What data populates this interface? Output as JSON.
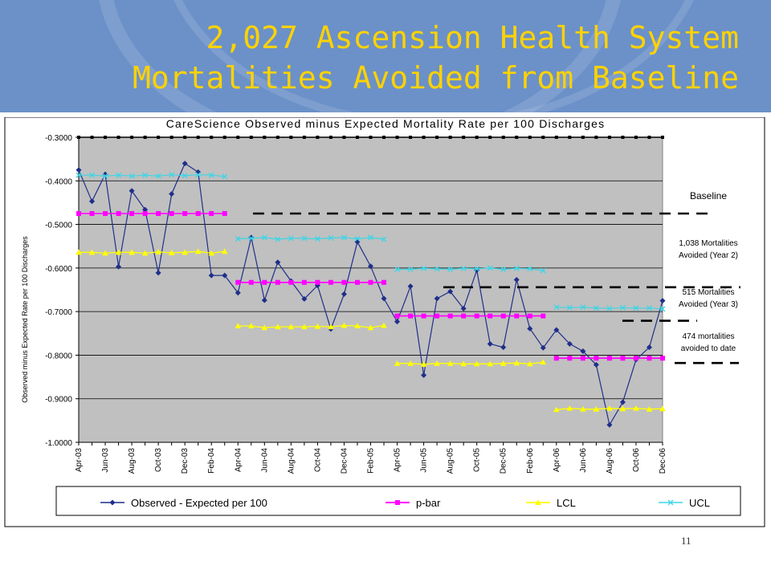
{
  "slide": {
    "title": "2,027 Ascension Health System Mortalities Avoided from Baseline",
    "page_number": "11"
  },
  "colors": {
    "header_bg": "#6b91c8",
    "title": "#ffd200",
    "plot_bg": "#c0c0c0",
    "observed": "#1f2f8a",
    "pbar": "#ff00ff",
    "lcl": "#ffff00",
    "ucl": "#3cd6e6"
  },
  "chart_data": {
    "type": "line",
    "title": "CareScience Observed minus Expected Mortality Rate per 100 Discharges",
    "ylabel": "Observed minus Expected Rate per 100 Discharges",
    "xlabel": "",
    "ylim": [
      -1.0,
      -0.3
    ],
    "yticks": [
      "-0.3000",
      "-0.4000",
      "-0.5000",
      "-0.6000",
      "-0.7000",
      "-0.8000",
      "-0.9000",
      "-1.0000"
    ],
    "grid": true,
    "legend_position": "bottom",
    "x_tick_labels": [
      "Apr-03",
      "Jun-03",
      "Aug-03",
      "Oct-03",
      "Dec-03",
      "Feb-04",
      "Apr-04",
      "Jun-04",
      "Aug-04",
      "Oct-04",
      "Dec-04",
      "Feb-05",
      "Apr-05",
      "Jun-05",
      "Aug-05",
      "Oct-05",
      "Dec-05",
      "Feb-06",
      "Apr-06",
      "Jun-06",
      "Aug-06",
      "Oct-06",
      "Dec-06"
    ],
    "months": [
      "Apr-03",
      "May-03",
      "Jun-03",
      "Jul-03",
      "Aug-03",
      "Sep-03",
      "Oct-03",
      "Nov-03",
      "Dec-03",
      "Jan-04",
      "Feb-04",
      "Mar-04",
      "Apr-04",
      "May-04",
      "Jun-04",
      "Jul-04",
      "Aug-04",
      "Sep-04",
      "Oct-04",
      "Nov-04",
      "Dec-04",
      "Jan-05",
      "Feb-05",
      "Mar-05",
      "Apr-05",
      "May-05",
      "Jun-05",
      "Jul-05",
      "Aug-05",
      "Sep-05",
      "Oct-05",
      "Nov-05",
      "Dec-05",
      "Jan-06",
      "Feb-06",
      "Mar-06",
      "Apr-06",
      "May-06",
      "Jun-06",
      "Jul-06",
      "Aug-06",
      "Sep-06",
      "Oct-06",
      "Nov-06",
      "Dec-06"
    ],
    "series": [
      {
        "name": "Observed - Expected per 100",
        "values": [
          -0.375,
          -0.447,
          -0.385,
          -0.597,
          -0.423,
          -0.466,
          -0.611,
          -0.43,
          -0.36,
          -0.38,
          -0.617,
          -0.617,
          -0.657,
          -0.53,
          -0.674,
          -0.587,
          -0.63,
          -0.671,
          -0.64,
          -0.74,
          -0.66,
          -0.54,
          -0.596,
          -0.67,
          -0.723,
          -0.642,
          -0.846,
          -0.67,
          -0.654,
          -0.693,
          -0.605,
          -0.774,
          -0.782,
          -0.627,
          -0.739,
          -0.783,
          -0.742,
          -0.774,
          -0.791,
          -0.822,
          -0.96,
          -0.908,
          -0.81,
          -0.782,
          -0.675
        ]
      },
      {
        "name": "p-bar",
        "values": [
          -0.475,
          -0.475,
          -0.475,
          -0.475,
          -0.475,
          -0.475,
          -0.475,
          -0.475,
          -0.475,
          -0.475,
          -0.475,
          -0.475,
          -0.633,
          -0.633,
          -0.633,
          -0.633,
          -0.633,
          -0.633,
          -0.633,
          -0.633,
          -0.633,
          -0.633,
          -0.633,
          -0.633,
          -0.71,
          -0.71,
          -0.71,
          -0.71,
          -0.71,
          -0.71,
          -0.71,
          -0.71,
          -0.71,
          -0.71,
          -0.71,
          -0.71,
          -0.807,
          -0.807,
          -0.807,
          -0.807,
          -0.807,
          -0.807,
          -0.807,
          -0.807,
          -0.807
        ]
      },
      {
        "name": "LCL",
        "values": [
          -0.564,
          -0.564,
          -0.566,
          -0.564,
          -0.564,
          -0.566,
          -0.563,
          -0.565,
          -0.564,
          -0.562,
          -0.566,
          -0.562,
          -0.733,
          -0.733,
          -0.737,
          -0.735,
          -0.735,
          -0.735,
          -0.734,
          -0.735,
          -0.732,
          -0.733,
          -0.737,
          -0.732,
          -0.819,
          -0.819,
          -0.821,
          -0.819,
          -0.819,
          -0.82,
          -0.82,
          -0.82,
          -0.819,
          -0.818,
          -0.82,
          -0.816,
          -0.925,
          -0.922,
          -0.924,
          -0.924,
          -0.922,
          -0.923,
          -0.922,
          -0.924,
          -0.923
        ]
      },
      {
        "name": "UCL",
        "values": [
          -0.387,
          -0.387,
          -0.389,
          -0.387,
          -0.389,
          -0.387,
          -0.389,
          -0.386,
          -0.388,
          -0.386,
          -0.387,
          -0.39,
          -0.533,
          -0.532,
          -0.53,
          -0.534,
          -0.532,
          -0.532,
          -0.533,
          -0.531,
          -0.53,
          -0.533,
          -0.53,
          -0.534,
          -0.603,
          -0.603,
          -0.601,
          -0.602,
          -0.603,
          -0.601,
          -0.602,
          -0.6,
          -0.603,
          -0.601,
          -0.602,
          -0.606,
          -0.69,
          -0.691,
          -0.69,
          -0.692,
          -0.693,
          -0.691,
          -0.692,
          -0.692,
          -0.694
        ]
      }
    ],
    "annotations": [
      {
        "text": [
          "Baseline"
        ],
        "level": -0.475
      },
      {
        "text": [
          "1,038 Mortalities",
          "Avoided (Year 2)"
        ],
        "level": -0.633
      },
      {
        "text": [
          "515 Mortalities",
          "Avoided (Year 3)"
        ],
        "level": -0.71
      },
      {
        "text": [
          "474 mortalities",
          "avoided to date"
        ],
        "level": -0.807
      }
    ]
  }
}
